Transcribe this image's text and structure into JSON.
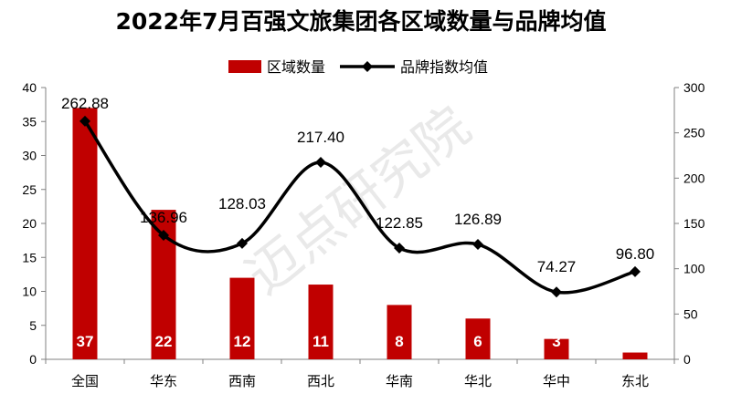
{
  "chart_data": {
    "type": "bar",
    "title": "2022年7月百强文旅集团各区域数量与品牌均值",
    "categories": [
      "全国",
      "华东",
      "西南",
      "西北",
      "华南",
      "华北",
      "华中",
      "东北"
    ],
    "series": [
      {
        "name": "区域数量",
        "type": "bar",
        "axis": "left",
        "values": [
          37,
          22,
          12,
          11,
          8,
          6,
          3,
          1
        ],
        "data_labels": [
          "37",
          "22",
          "12",
          "11",
          "8",
          "6",
          "3",
          ""
        ],
        "color": "#C00000"
      },
      {
        "name": "品牌指数均值",
        "type": "line",
        "axis": "right",
        "values": [
          262.88,
          136.96,
          128.03,
          217.4,
          122.85,
          126.89,
          74.27,
          96.8
        ],
        "data_labels": [
          "262.88",
          "136.96",
          "128.03",
          "217.40",
          "122.85",
          "126.89",
          "74.27",
          "96.80"
        ],
        "color": "#000000",
        "smooth": true,
        "marker": "diamond"
      }
    ],
    "y_left": {
      "ylim": [
        0,
        40
      ],
      "ticks": [
        0,
        5,
        10,
        15,
        20,
        25,
        30,
        35,
        40
      ]
    },
    "y_right": {
      "ylim": [
        0,
        300
      ],
      "ticks": [
        0,
        50,
        100,
        150,
        200,
        250,
        300
      ]
    },
    "grid": false,
    "legend": "top"
  },
  "watermark": "迈点研究院"
}
